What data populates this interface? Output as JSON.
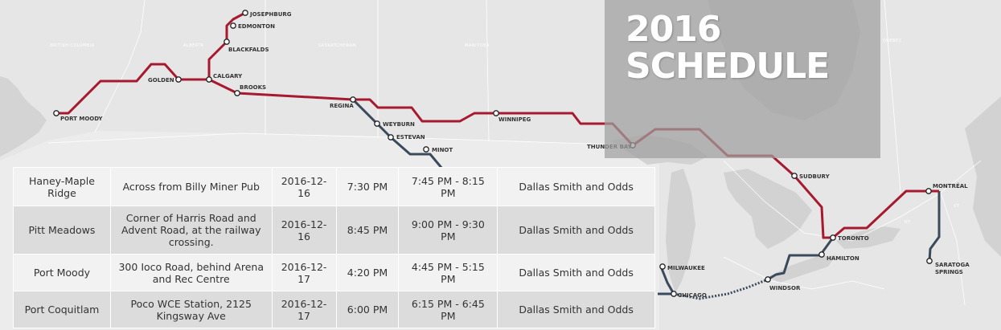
{
  "title": {
    "line1": "2016",
    "line2": "SCHEDULE"
  },
  "map": {
    "cities": {
      "josephburg": "JOSEPHBURG",
      "edmonton": "EDMONTON",
      "blackfalds": "BLACKFALDS",
      "calgary": "CALGARY",
      "golden": "GOLDEN",
      "brooks": "BROOKS",
      "port_moody": "PORT MOODY",
      "regina": "REGINA",
      "weyburn": "WEYBURN",
      "estevan": "ESTEVAN",
      "minot": "MINOT",
      "winnipeg": "WINNIPEG",
      "thunder_bay": "THUNDER BAY",
      "sudbury": "SUDBURY",
      "toronto": "TORONTO",
      "hamilton": "HAMILTON",
      "montreal": "MONTRÉAL",
      "saratoga_springs_1": "SARATOGA",
      "saratoga_springs_2": "SPRINGS",
      "milwaukee": "MILWAUKEE",
      "chicago": "CHICAGO",
      "windsor": "WINDSOR"
    },
    "regions": {
      "bc": "BRITISH COLUMBIA",
      "alberta": "ALBERTA",
      "sask": "SASKATCHEWAN",
      "manitoba": "MANITOBA",
      "quebec": "QUEBEC",
      "ny": "NY",
      "vt": "VT"
    },
    "colors": {
      "canada_route": "#a6192e",
      "us_route": "#3a4a5c",
      "land": "#e4e4e4",
      "water": "#d2d2d2"
    }
  },
  "schedule": {
    "rows": [
      {
        "city": "Haney-Maple Ridge",
        "location": "Across from Billy Miner Pub",
        "date": "2016-12-16",
        "arrival": "7:30 PM",
        "stop": "7:45 PM - 8:15 PM",
        "performers": "Dallas Smith and Odds"
      },
      {
        "city": "Pitt Meadows",
        "location": "Corner of Harris Road and Advent Road, at the railway crossing.",
        "date": "2016-12-16",
        "arrival": "8:45 PM",
        "stop": "9:00 PM - 9:30 PM",
        "performers": "Dallas Smith and Odds"
      },
      {
        "city": "Port Moody",
        "location": "300 Ioco Road, behind Arena and Rec Centre",
        "date": "2016-12-17",
        "arrival": "4:20 PM",
        "stop": "4:45 PM - 5:15 PM",
        "performers": "Dallas Smith and Odds"
      },
      {
        "city": "Port Coquitlam",
        "location": "Poco WCE Station, 2125 Kingsway Ave",
        "date": "2016-12-17",
        "arrival": "6:00 PM",
        "stop": "6:15 PM - 6:45 PM",
        "performers": "Dallas Smith and Odds"
      }
    ]
  }
}
